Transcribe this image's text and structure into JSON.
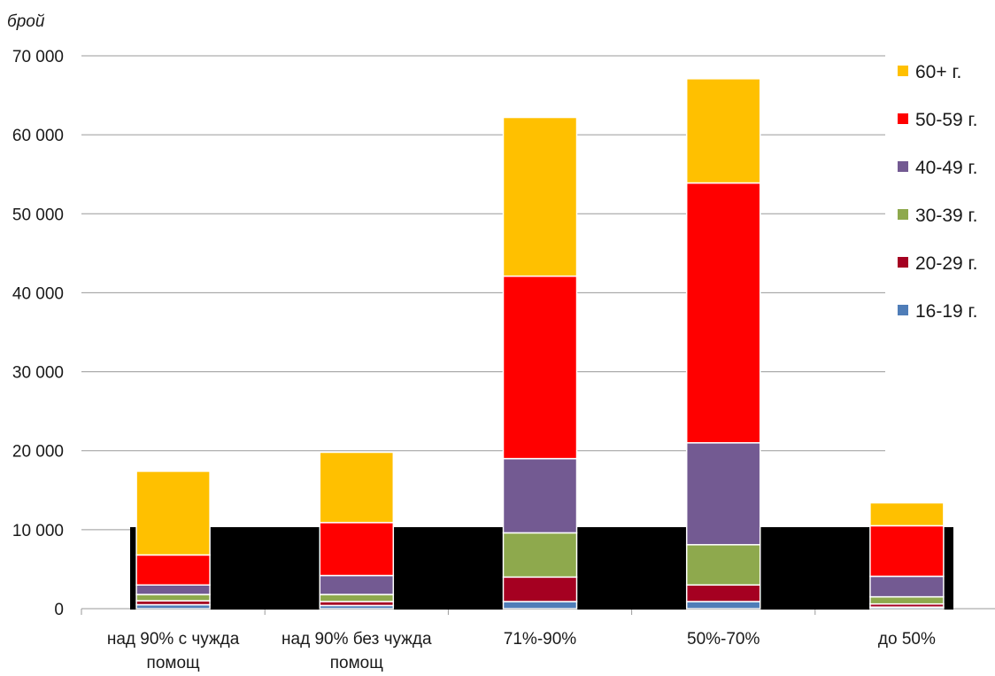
{
  "chart_data": {
    "type": "bar",
    "stacked": true,
    "ylabel": "брой",
    "xlabel": "",
    "ylim": [
      0,
      70000
    ],
    "yticks": [
      0,
      10000,
      20000,
      30000,
      40000,
      50000,
      60000,
      70000
    ],
    "ytick_labels": [
      "0",
      "10 000",
      "20 000",
      "30 000",
      "40 000",
      "50 000",
      "60 000",
      "70 000"
    ],
    "grid": true,
    "legend_position": "right",
    "categories": [
      [
        "над 90% с чужда",
        "помощ"
      ],
      [
        "над 90% без чужда",
        "помощ"
      ],
      [
        "71%-90%"
      ],
      [
        "50%-70%"
      ],
      [
        "до 50%"
      ]
    ],
    "series": [
      {
        "name": "16-19 г.",
        "color": "#4f7db8",
        "values": [
          500,
          400,
          900,
          900,
          200
        ]
      },
      {
        "name": "20-29 г.",
        "color": "#a50021",
        "values": [
          500,
          500,
          3100,
          2100,
          400
        ]
      },
      {
        "name": "30-39 г.",
        "color": "#8ea94d",
        "values": [
          800,
          900,
          5600,
          5100,
          900
        ]
      },
      {
        "name": "40-49 г.",
        "color": "#735a92",
        "values": [
          1200,
          2400,
          9400,
          12900,
          2600
        ]
      },
      {
        "name": "50-59 г.",
        "color": "#ff0000",
        "values": [
          3800,
          6700,
          23100,
          32900,
          6400
        ]
      },
      {
        "name": "60+ г.",
        "color": "#ffc000",
        "values": [
          10600,
          8900,
          20100,
          13200,
          2900
        ]
      }
    ]
  }
}
